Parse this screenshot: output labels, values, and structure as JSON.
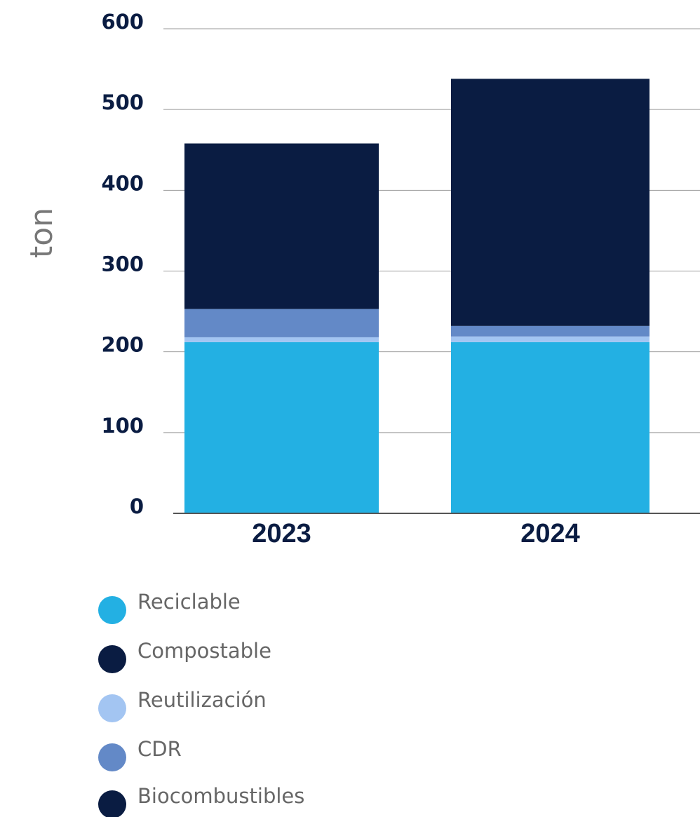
{
  "chart_data": {
    "type": "stacked_bar",
    "y_label": "ton",
    "categories": [
      "2023",
      "2024"
    ],
    "series": [
      {
        "name": "Reciclable",
        "color": "#23b0e3",
        "values": [
          212,
          212
        ]
      },
      {
        "name": "Compostable",
        "color": "#0a1c42",
        "values": [
          0,
          0
        ]
      },
      {
        "name": "Reutilización",
        "color": "#a3c5f2",
        "values": [
          6,
          7
        ]
      },
      {
        "name": "CDR",
        "color": "#6389c7",
        "values": [
          35,
          13
        ]
      },
      {
        "name": "Biocombustibles",
        "color": "#0a1c42",
        "values": [
          205,
          306
        ]
      }
    ],
    "ylim": [
      0,
      600
    ],
    "yticks": [
      0,
      100,
      200,
      300,
      400,
      500,
      600
    ],
    "grid": true
  }
}
